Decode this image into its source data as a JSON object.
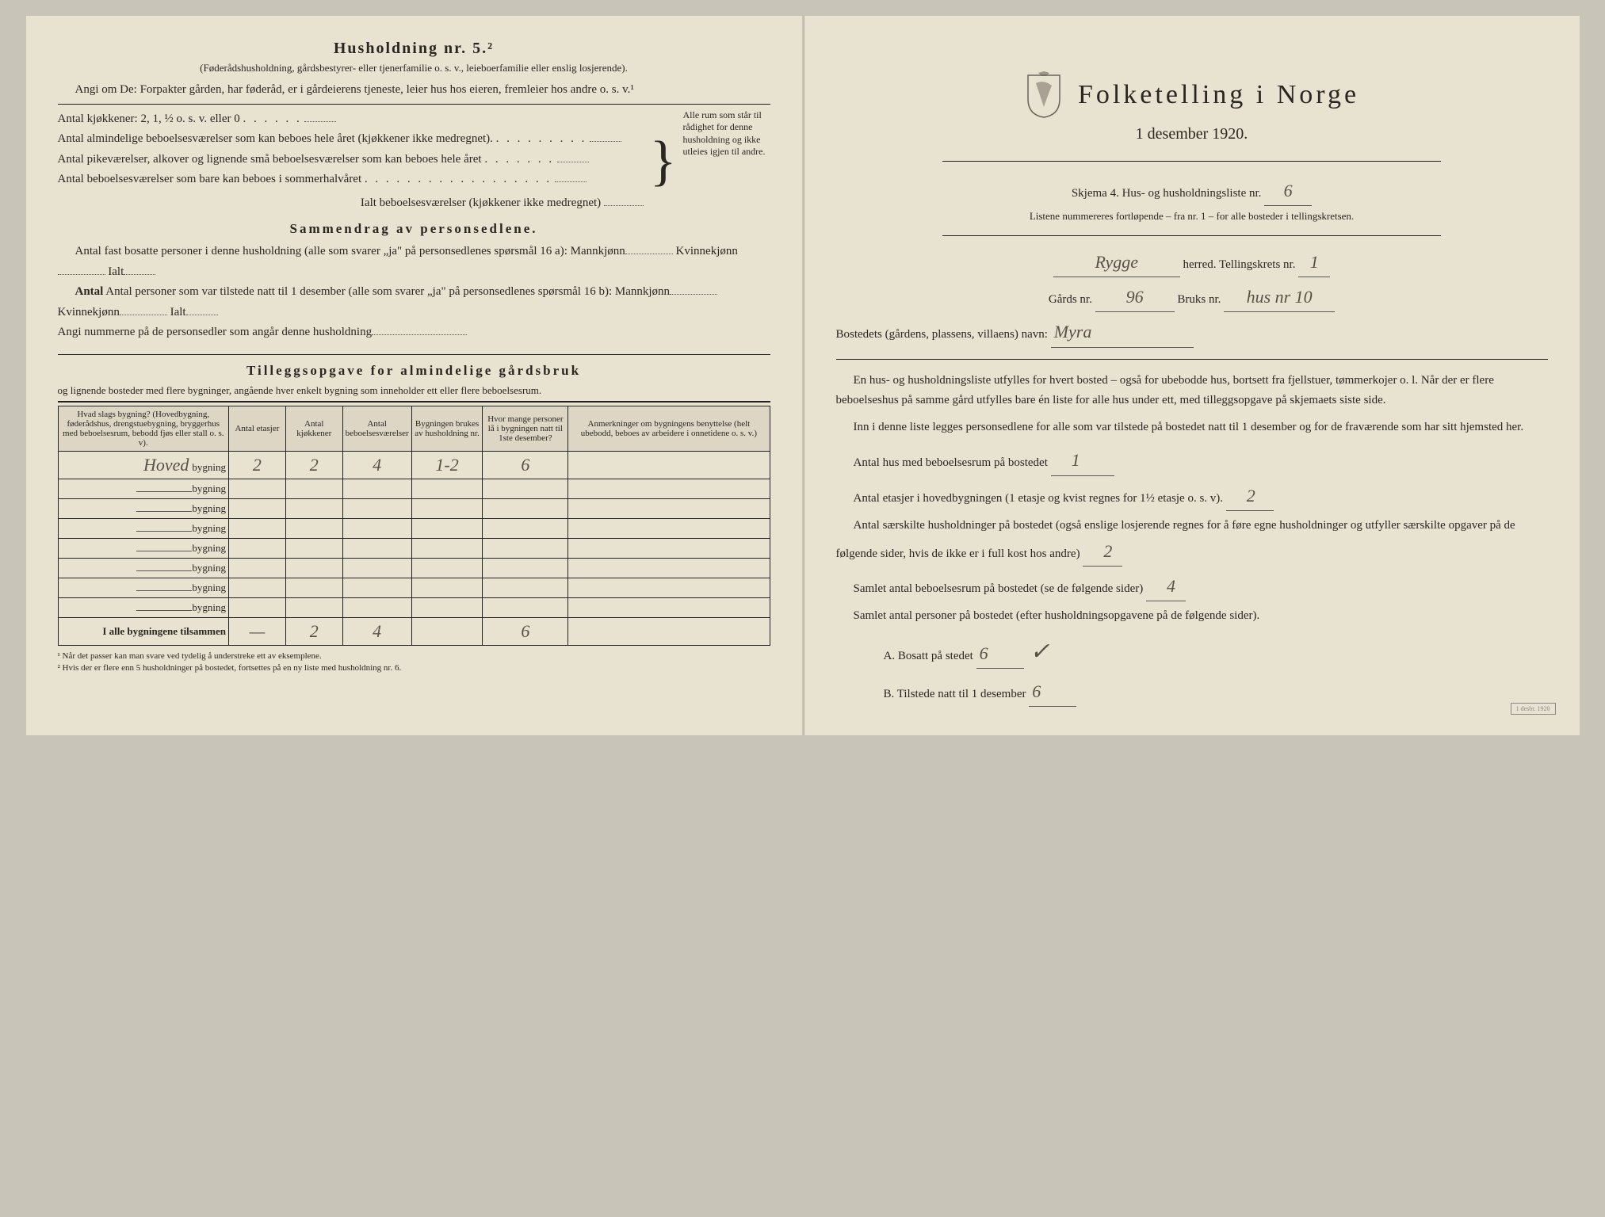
{
  "left": {
    "heading": "Husholdning nr. 5.²",
    "sub1": "(Føderådshusholdning, gårdsbestyrer- eller tjenerfamilie o. s. v., leieboerfamilie eller enslig losjerende).",
    "sub2": "Angi om De: Forpakter gården, har føderåd, er i gårdeierens tjeneste, leier hus hos eieren, fremleier hos andre o. s. v.¹",
    "kitchens": "Antal kjøkkener: 2, 1, ½ o. s. v. eller 0",
    "rooms1": "Antal almindelige beboelsesværelser som kan beboes hele året (kjøkkener ikke medregnet).",
    "rooms2": "Antal pikeværelser, alkover og lignende små beboelsesværelser som kan beboes hele året",
    "rooms3": "Antal beboelsesværelser som bare kan beboes i sommerhalvåret",
    "rooms_total": "Ialt beboelsesværelser (kjøkkener ikke medregnet)",
    "brace_text": "Alle rum som står til rådighet for denne husholdning og ikke utleies igjen til andre.",
    "summary_heading": "Sammendrag av personsedlene.",
    "summary1a": "Antal fast bosatte personer i denne husholdning (alle som svarer „ja\" på personsedlenes spørsmål 16 a): Mannkjønn",
    "summary1b": "Kvinnekjønn",
    "summary1c": "Ialt",
    "summary2a": "Antal personer som var tilstede natt til 1 desember (alle som svarer „ja\" på personsedlenes spørsmål 16 b): Mannkjønn",
    "summary3": "Angi nummerne på de personsedler som angår denne husholdning",
    "tillegg_heading": "Tilleggsopgave for almindelige gårdsbruk",
    "tillegg_sub": "og lignende bosteder med flere bygninger, angående hver enkelt bygning som inneholder ett eller flere beboelsesrum.",
    "table": {
      "headers": [
        "Hvad slags bygning?\n(Hovedbygning, føderådshus, drengstuebygning, bryggerhus med beboelsesrum, bebodd fjøs eller stall o. s. v).",
        "Antal etasjer",
        "Antal kjøkkener",
        "Antal beboelsesværelser",
        "Bygningen brukes av husholdning nr.",
        "Hvor mange personer lå i bygningen natt til 1ste desember?",
        "Anmerkninger om bygningens benyttelse (helt ubebodd, beboes av arbeidere i onnetidene o. s. v.)"
      ],
      "rows": [
        {
          "label": "Hoved",
          "suffix": "bygning",
          "cells": [
            "2",
            "2",
            "4",
            "1-2",
            "6",
            ""
          ]
        },
        {
          "label": "",
          "suffix": "bygning",
          "cells": [
            "",
            "",
            "",
            "",
            "",
            ""
          ]
        },
        {
          "label": "",
          "suffix": "bygning",
          "cells": [
            "",
            "",
            "",
            "",
            "",
            ""
          ]
        },
        {
          "label": "",
          "suffix": "bygning",
          "cells": [
            "",
            "",
            "",
            "",
            "",
            ""
          ]
        },
        {
          "label": "",
          "suffix": "bygning",
          "cells": [
            "",
            "",
            "",
            "",
            "",
            ""
          ]
        },
        {
          "label": "",
          "suffix": "bygning",
          "cells": [
            "",
            "",
            "",
            "",
            "",
            ""
          ]
        },
        {
          "label": "",
          "suffix": "bygning",
          "cells": [
            "",
            "",
            "",
            "",
            "",
            ""
          ]
        },
        {
          "label": "",
          "suffix": "bygning",
          "cells": [
            "",
            "",
            "",
            "",
            "",
            ""
          ]
        }
      ],
      "total_label": "I alle bygningene tilsammen",
      "total_cells": [
        "—",
        "2",
        "4",
        "",
        "6",
        ""
      ]
    },
    "footnote1": "¹ Når det passer kan man svare ved tydelig å understreke ett av eksemplene.",
    "footnote2": "² Hvis der er flere enn 5 husholdninger på bostedet, fortsettes på en ny liste med husholdning nr. 6."
  },
  "right": {
    "title": "Folketelling i Norge",
    "subtitle": "1 desember 1920.",
    "skjema_label": "Skjema 4.   Hus- og husholdningsliste nr.",
    "skjema_nr": "6",
    "list_note": "Listene nummereres fortløpende – fra nr. 1 – for alle bosteder i tellingskretsen.",
    "herred_hand": "Rygge",
    "herred_label": "herred.   Tellingskrets nr.",
    "krets_nr": "1",
    "gards_label": "Gårds nr.",
    "gards_nr": "96",
    "bruks_label": "Bruks nr.",
    "bruks_nr": "hus nr 10",
    "bosted_label": "Bostedets (gårdens, plassens, villaens) navn:",
    "bosted_hand": "Myra",
    "para1": "En hus- og husholdningsliste utfylles for hvert bosted – også for ubebodde hus, bortsett fra fjellstuer, tømmerkojer o. l.  Når der er flere beboelseshus på samme gård utfylles bare én liste for alle hus under ett, med tilleggsopgave på skjemaets siste side.",
    "para2": "Inn i denne liste legges personsedlene for alle som var tilstede på bostedet natt til 1 desember og for de fraværende som har sitt hjemsted her.",
    "q1_label": "Antal hus med beboelsesrum på bostedet",
    "q1_val": "1",
    "q2_label_a": "Antal etasjer i hovedbygningen (1 etasje og kvist regnes for 1½ etasje o. s. v).",
    "q2_val": "2",
    "q3_label": "Antal særskilte husholdninger på bostedet (også enslige losjerende regnes for å føre egne husholdninger og utfyller særskilte opgaver på de følgende sider, hvis de ikke er i full kost hos andre)",
    "q3_val": "2",
    "q4_label": "Samlet antal beboelsesrum på bostedet (se de følgende sider)",
    "q4_val": "4",
    "q5_label": "Samlet antal personer på bostedet (efter husholdningsopgavene på de følgende sider).",
    "qA_label": "A.  Bosatt på stedet",
    "qA_val": "6",
    "qB_label": "B.  Tilstede natt til 1 desember",
    "qB_val": "6",
    "stamp": "1 desbr. 1920"
  }
}
